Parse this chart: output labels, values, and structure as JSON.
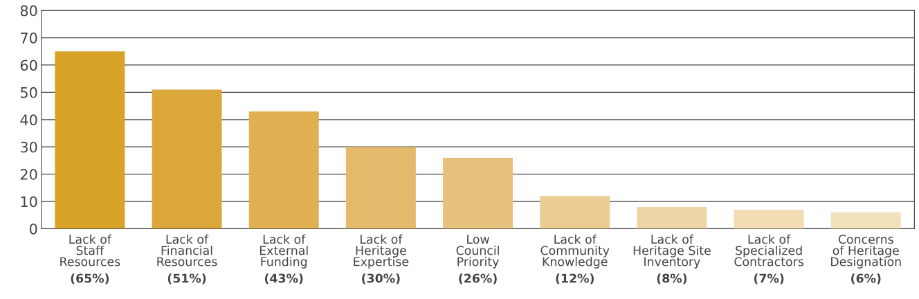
{
  "chart_data": {
    "type": "bar",
    "categories": [
      "Lack of\nStaff\nResources",
      "Lack of\nFinancial\nResources",
      "Lack of\nExternal\nFunding",
      "Lack of\nHeritage\nExpertise",
      "Low\nCouncil\nPriority",
      "Lack of\nCommunity\nKnowledge",
      "Lack of\nHeritage Site\nInventory",
      "Lack of\nSpecialized\nContractors",
      "Concerns\nof Heritage\nDesignation"
    ],
    "values": [
      65,
      51,
      43,
      30,
      26,
      12,
      8,
      7,
      6
    ],
    "value_labels": [
      "(65%)",
      "(51%)",
      "(43%)",
      "(30%)",
      "(26%)",
      "(12%)",
      "(8%)",
      "(7%)",
      "(6%)"
    ],
    "colors": [
      "#d9a229",
      "#dca73a",
      "#e0b052",
      "#e3ba6b",
      "#e7c27c",
      "#ebcc92",
      "#eed5a6",
      "#f1dcb3",
      "#f3e1bb"
    ],
    "ylim": [
      0,
      80
    ],
    "yticks": [
      0,
      10,
      20,
      30,
      40,
      50,
      60,
      70,
      80
    ],
    "grid": "y"
  }
}
